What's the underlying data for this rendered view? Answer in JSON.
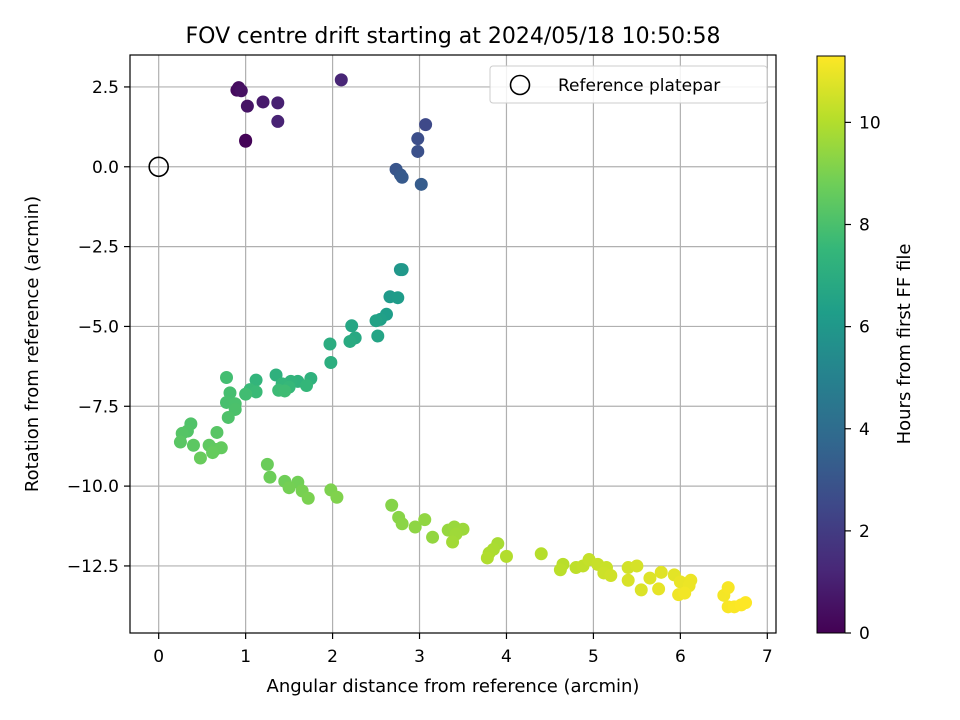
{
  "chart_data": {
    "type": "scatter",
    "title": "FOV centre drift starting at 2024/05/18 10:50:58",
    "xlabel": "Angular distance from reference (arcmin)",
    "ylabel": "Rotation from reference (arcmin)",
    "xlim": [
      -0.33,
      7.1
    ],
    "ylim": [
      -14.6,
      3.5
    ],
    "xticks": [
      0,
      1,
      2,
      3,
      4,
      5,
      6,
      7
    ],
    "xtick_labels": [
      "0",
      "1",
      "2",
      "3",
      "4",
      "5",
      "6",
      "7"
    ],
    "yticks": [
      2.5,
      0,
      -2.5,
      -5,
      -7.5,
      -10,
      -12.5
    ],
    "ytick_labels": [
      "2.5",
      "0.0",
      "−2.5",
      "−5.0",
      "−7.5",
      "−10.0",
      "−12.5"
    ],
    "grid": true,
    "legend": {
      "position": "top-right",
      "entries": [
        {
          "label": "Reference platepar",
          "marker": "open-circle"
        }
      ]
    },
    "reference_point": {
      "x": 0,
      "y": 0
    },
    "colormap": "viridis",
    "colormap_stops": [
      "#440154",
      "#482878",
      "#3e4989",
      "#31688e",
      "#26828e",
      "#1f9e89",
      "#35b779",
      "#6ece58",
      "#b5de2b",
      "#fde725"
    ],
    "colorbar": {
      "label": "Hours from first FF file",
      "min": 0,
      "max": 11.3,
      "ticks": [
        0,
        2,
        4,
        6,
        8,
        10
      ],
      "tick_labels": [
        "0",
        "2",
        "4",
        "6",
        "8",
        "10"
      ]
    },
    "points": [
      {
        "x": 1.0,
        "y": 0.83,
        "c": 0.0
      },
      {
        "x": 1.0,
        "y": 0.8,
        "c": 0.1
      },
      {
        "x": 0.9,
        "y": 2.4,
        "c": 0.3
      },
      {
        "x": 0.92,
        "y": 2.48,
        "c": 0.4
      },
      {
        "x": 0.95,
        "y": 2.38,
        "c": 0.5
      },
      {
        "x": 1.02,
        "y": 1.9,
        "c": 0.6
      },
      {
        "x": 1.2,
        "y": 2.03,
        "c": 0.8
      },
      {
        "x": 1.37,
        "y": 2.0,
        "c": 1.0
      },
      {
        "x": 1.37,
        "y": 1.42,
        "c": 1.1
      },
      {
        "x": 2.1,
        "y": 2.72,
        "c": 1.2
      },
      {
        "x": 3.07,
        "y": 1.32,
        "c": 2.5
      },
      {
        "x": 2.98,
        "y": 0.88,
        "c": 2.7
      },
      {
        "x": 2.98,
        "y": 0.48,
        "c": 2.8
      },
      {
        "x": 2.73,
        "y": -0.08,
        "c": 3.0
      },
      {
        "x": 2.78,
        "y": -0.25,
        "c": 3.1
      },
      {
        "x": 2.8,
        "y": -0.33,
        "c": 3.2
      },
      {
        "x": 3.02,
        "y": -0.55,
        "c": 3.3
      },
      {
        "x": 2.78,
        "y": -3.22,
        "c": 5.9
      },
      {
        "x": 2.8,
        "y": -3.22,
        "c": 6.0
      },
      {
        "x": 2.66,
        "y": -4.07,
        "c": 6.1
      },
      {
        "x": 2.75,
        "y": -4.1,
        "c": 6.2
      },
      {
        "x": 2.62,
        "y": -4.62,
        "c": 6.3
      },
      {
        "x": 2.55,
        "y": -4.78,
        "c": 6.4
      },
      {
        "x": 2.5,
        "y": -4.82,
        "c": 6.5
      },
      {
        "x": 2.52,
        "y": -5.3,
        "c": 6.6
      },
      {
        "x": 2.22,
        "y": -4.98,
        "c": 6.7
      },
      {
        "x": 2.26,
        "y": -5.36,
        "c": 6.8
      },
      {
        "x": 2.2,
        "y": -5.47,
        "c": 6.9
      },
      {
        "x": 1.97,
        "y": -5.55,
        "c": 7.0
      },
      {
        "x": 1.98,
        "y": -6.13,
        "c": 7.1
      },
      {
        "x": 1.35,
        "y": -6.52,
        "c": 7.2
      },
      {
        "x": 1.75,
        "y": -6.63,
        "c": 7.25
      },
      {
        "x": 1.6,
        "y": -6.72,
        "c": 7.3
      },
      {
        "x": 1.52,
        "y": -6.72,
        "c": 7.35
      },
      {
        "x": 1.12,
        "y": -6.68,
        "c": 7.4
      },
      {
        "x": 1.42,
        "y": -6.8,
        "c": 7.45
      },
      {
        "x": 1.7,
        "y": -6.85,
        "c": 7.5
      },
      {
        "x": 1.5,
        "y": -6.9,
        "c": 7.55
      },
      {
        "x": 1.05,
        "y": -6.98,
        "c": 7.6
      },
      {
        "x": 1.12,
        "y": -7.05,
        "c": 7.65
      },
      {
        "x": 1.38,
        "y": -7.0,
        "c": 7.7
      },
      {
        "x": 1.45,
        "y": -7.02,
        "c": 7.75
      },
      {
        "x": 1.0,
        "y": -7.12,
        "c": 7.8
      },
      {
        "x": 0.78,
        "y": -6.6,
        "c": 7.85
      },
      {
        "x": 0.82,
        "y": -7.08,
        "c": 7.9
      },
      {
        "x": 0.78,
        "y": -7.38,
        "c": 7.95
      },
      {
        "x": 0.88,
        "y": -7.42,
        "c": 8.0
      },
      {
        "x": 0.88,
        "y": -7.6,
        "c": 8.05
      },
      {
        "x": 0.8,
        "y": -7.85,
        "c": 8.1
      },
      {
        "x": 0.37,
        "y": -8.05,
        "c": 8.15
      },
      {
        "x": 0.33,
        "y": -8.28,
        "c": 8.2
      },
      {
        "x": 0.27,
        "y": -8.35,
        "c": 8.25
      },
      {
        "x": 0.67,
        "y": -8.32,
        "c": 8.3
      },
      {
        "x": 0.25,
        "y": -8.62,
        "c": 8.35
      },
      {
        "x": 0.4,
        "y": -8.72,
        "c": 8.4
      },
      {
        "x": 0.58,
        "y": -8.72,
        "c": 8.45
      },
      {
        "x": 0.65,
        "y": -8.85,
        "c": 8.5
      },
      {
        "x": 0.72,
        "y": -8.8,
        "c": 8.55
      },
      {
        "x": 0.62,
        "y": -8.95,
        "c": 8.6
      },
      {
        "x": 0.48,
        "y": -9.12,
        "c": 8.65
      },
      {
        "x": 1.25,
        "y": -9.32,
        "c": 8.7
      },
      {
        "x": 1.28,
        "y": -9.72,
        "c": 8.75
      },
      {
        "x": 1.45,
        "y": -9.85,
        "c": 8.8
      },
      {
        "x": 1.6,
        "y": -9.88,
        "c": 8.85
      },
      {
        "x": 1.5,
        "y": -10.05,
        "c": 8.9
      },
      {
        "x": 1.65,
        "y": -10.15,
        "c": 8.95
      },
      {
        "x": 1.72,
        "y": -10.38,
        "c": 9.0
      },
      {
        "x": 1.98,
        "y": -10.12,
        "c": 9.05
      },
      {
        "x": 2.05,
        "y": -10.35,
        "c": 9.1
      },
      {
        "x": 2.68,
        "y": -10.6,
        "c": 9.2
      },
      {
        "x": 2.76,
        "y": -10.98,
        "c": 9.25
      },
      {
        "x": 2.8,
        "y": -11.18,
        "c": 9.3
      },
      {
        "x": 2.95,
        "y": -11.28,
        "c": 9.35
      },
      {
        "x": 3.06,
        "y": -11.05,
        "c": 9.4
      },
      {
        "x": 3.15,
        "y": -11.6,
        "c": 9.45
      },
      {
        "x": 3.33,
        "y": -11.38,
        "c": 9.5
      },
      {
        "x": 3.4,
        "y": -11.28,
        "c": 9.55
      },
      {
        "x": 3.5,
        "y": -11.35,
        "c": 9.6
      },
      {
        "x": 3.42,
        "y": -11.5,
        "c": 9.65
      },
      {
        "x": 3.38,
        "y": -11.75,
        "c": 9.7
      },
      {
        "x": 3.9,
        "y": -11.8,
        "c": 9.8
      },
      {
        "x": 3.85,
        "y": -11.98,
        "c": 9.85
      },
      {
        "x": 3.8,
        "y": -12.1,
        "c": 9.9
      },
      {
        "x": 3.78,
        "y": -12.25,
        "c": 9.95
      },
      {
        "x": 4.0,
        "y": -12.2,
        "c": 10.0
      },
      {
        "x": 4.4,
        "y": -12.12,
        "c": 10.05
      },
      {
        "x": 4.65,
        "y": -12.45,
        "c": 10.1
      },
      {
        "x": 4.62,
        "y": -12.62,
        "c": 10.15
      },
      {
        "x": 4.8,
        "y": -12.55,
        "c": 10.2
      },
      {
        "x": 4.88,
        "y": -12.5,
        "c": 10.25
      },
      {
        "x": 4.95,
        "y": -12.3,
        "c": 10.3
      },
      {
        "x": 5.05,
        "y": -12.45,
        "c": 10.35
      },
      {
        "x": 5.15,
        "y": -12.55,
        "c": 10.4
      },
      {
        "x": 5.12,
        "y": -12.72,
        "c": 10.45
      },
      {
        "x": 5.2,
        "y": -12.8,
        "c": 10.5
      },
      {
        "x": 5.4,
        "y": -12.55,
        "c": 10.55
      },
      {
        "x": 5.5,
        "y": -12.5,
        "c": 10.6
      },
      {
        "x": 5.4,
        "y": -12.95,
        "c": 10.65
      },
      {
        "x": 5.55,
        "y": -13.25,
        "c": 10.7
      },
      {
        "x": 5.65,
        "y": -12.88,
        "c": 10.75
      },
      {
        "x": 5.78,
        "y": -12.7,
        "c": 10.8
      },
      {
        "x": 5.93,
        "y": -12.78,
        "c": 10.85
      },
      {
        "x": 5.75,
        "y": -13.22,
        "c": 10.9
      },
      {
        "x": 6.0,
        "y": -13.0,
        "c": 10.95
      },
      {
        "x": 6.12,
        "y": -12.95,
        "c": 11.0
      },
      {
        "x": 6.1,
        "y": -13.12,
        "c": 11.0
      },
      {
        "x": 5.98,
        "y": -13.4,
        "c": 11.05
      },
      {
        "x": 6.05,
        "y": -13.35,
        "c": 11.1
      },
      {
        "x": 6.5,
        "y": -13.42,
        "c": 11.15
      },
      {
        "x": 6.55,
        "y": -13.18,
        "c": 11.2
      },
      {
        "x": 6.55,
        "y": -13.78,
        "c": 11.22
      },
      {
        "x": 6.62,
        "y": -13.78,
        "c": 11.25
      },
      {
        "x": 6.7,
        "y": -13.72,
        "c": 11.28
      },
      {
        "x": 6.75,
        "y": -13.65,
        "c": 11.3
      }
    ]
  }
}
